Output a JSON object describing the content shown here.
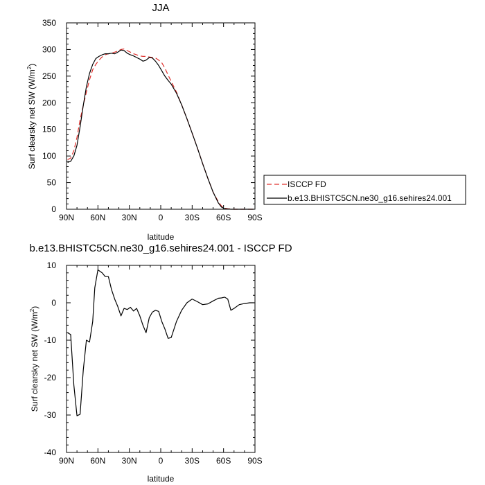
{
  "chart_data": [
    {
      "type": "line",
      "title": "JJA",
      "xlabel": "latitude",
      "ylabel": "Surf clearsky net SW (W/m",
      "ylabel_superscript": "2",
      "ylabel_suffix": ")",
      "xlim": [
        90,
        -90
      ],
      "ylim": [
        0,
        350
      ],
      "x_ticks": [
        90,
        60,
        30,
        0,
        -30,
        -60,
        -90
      ],
      "x_tick_labels": [
        "90N",
        "60N",
        "30N",
        "0",
        "30S",
        "60S",
        "90S"
      ],
      "y_ticks": [
        0,
        50,
        100,
        150,
        200,
        250,
        300,
        350
      ],
      "y_tick_labels": [
        "0",
        "50",
        "100",
        "150",
        "200",
        "250",
        "300",
        "350"
      ],
      "grid": false,
      "legend": "outside-right",
      "series": [
        {
          "name": "ISCCP FD",
          "color": "#e0302c",
          "dash": "dashed",
          "x": [
            89,
            86,
            83,
            80,
            77,
            74,
            71,
            68,
            65,
            62,
            59,
            56,
            53,
            50,
            47,
            44,
            41,
            38,
            35,
            32,
            29,
            26,
            23,
            20,
            17,
            14,
            11,
            8,
            5,
            2,
            -1,
            -4,
            -7,
            -10,
            -15,
            -20,
            -25,
            -30,
            -35,
            -40,
            -45,
            -50,
            -55,
            -58,
            -61,
            -64,
            -67,
            -70,
            -75,
            -80,
            -85,
            -89
          ],
          "y": [
            93,
            96,
            110,
            135,
            168,
            195,
            220,
            243,
            262,
            272,
            280,
            286,
            290,
            292,
            293,
            295,
            297,
            300,
            301,
            298,
            295,
            292,
            290,
            288,
            287,
            287,
            286,
            285,
            284,
            280,
            275,
            265,
            252,
            240,
            220,
            196,
            170,
            143,
            115,
            86,
            58,
            32,
            14,
            6,
            2,
            1,
            0.5,
            0,
            0,
            0,
            0,
            0
          ]
        },
        {
          "name": "b.e13.BHISTC5CN.ne30_g16.sehires24.001",
          "color": "#000000",
          "dash": "solid",
          "x": [
            89,
            86,
            83,
            80,
            77,
            74,
            71,
            68,
            65,
            62,
            59,
            56,
            53,
            50,
            47,
            44,
            41,
            38,
            35,
            32,
            29,
            26,
            23,
            20,
            17,
            14,
            11,
            8,
            5,
            2,
            -1,
            -4,
            -7,
            -10,
            -15,
            -20,
            -25,
            -30,
            -35,
            -40,
            -45,
            -50,
            -55,
            -58,
            -61,
            -64,
            -67,
            -70,
            -75,
            -80,
            -85,
            -89
          ],
          "y": [
            88,
            90,
            100,
            120,
            155,
            195,
            230,
            255,
            272,
            283,
            287,
            290,
            292,
            292,
            293,
            292,
            295,
            299,
            298,
            293,
            290,
            288,
            285,
            282,
            278,
            280,
            285,
            284,
            278,
            270,
            260,
            250,
            242,
            235,
            218,
            196,
            170,
            143,
            115,
            86,
            58,
            32,
            12,
            4,
            1,
            0.5,
            0,
            0,
            0,
            0,
            0,
            0
          ]
        }
      ]
    },
    {
      "type": "line",
      "title": "b.e13.BHISTC5CN.ne30_g16.sehires24.001 - ISCCP FD",
      "xlabel": "latitude",
      "ylabel": "Surf clearsky net SW (W/m",
      "ylabel_superscript": "2",
      "ylabel_suffix": ")",
      "xlim": [
        90,
        -90
      ],
      "ylim": [
        -40,
        10
      ],
      "x_ticks": [
        90,
        60,
        30,
        0,
        -30,
        -60,
        -90
      ],
      "x_tick_labels": [
        "90N",
        "60N",
        "30N",
        "0",
        "30S",
        "60S",
        "90S"
      ],
      "y_ticks": [
        -40,
        -30,
        -20,
        -10,
        0,
        10
      ],
      "y_tick_labels": [
        "-40",
        "-30",
        "-20",
        "-10",
        "0",
        "10"
      ],
      "grid": false,
      "series": [
        {
          "color": "#000000",
          "dash": "solid",
          "x": [
            89,
            86,
            83,
            80,
            77,
            74,
            71,
            68,
            65,
            63,
            60,
            56,
            53,
            50,
            47,
            44,
            41,
            38,
            35,
            32,
            29,
            26,
            23,
            20,
            17,
            14,
            11,
            8,
            5,
            2,
            -1,
            -4,
            -7,
            -10,
            -15,
            -20,
            -25,
            -30,
            -35,
            -40,
            -45,
            -50,
            -55,
            -58,
            -61,
            -64,
            -67,
            -70,
            -75,
            -80,
            -85,
            -89
          ],
          "y": [
            -8,
            -8.5,
            -22,
            -30.2,
            -29.8,
            -18,
            -10,
            -10.5,
            -5,
            4,
            8.8,
            8,
            7,
            7,
            3.5,
            1,
            -1,
            -3.5,
            -1.5,
            -1.8,
            -1.2,
            -2.2,
            -1.5,
            -3.5,
            -6,
            -8,
            -4,
            -2.5,
            -2,
            -2.3,
            -5,
            -7,
            -9.5,
            -9.3,
            -5,
            -2,
            0,
            1,
            0.3,
            -0.5,
            -0.3,
            0.5,
            1.2,
            1.3,
            1.5,
            1,
            -2,
            -1.5,
            -0.5,
            -0.2,
            0,
            0
          ]
        }
      ]
    }
  ]
}
